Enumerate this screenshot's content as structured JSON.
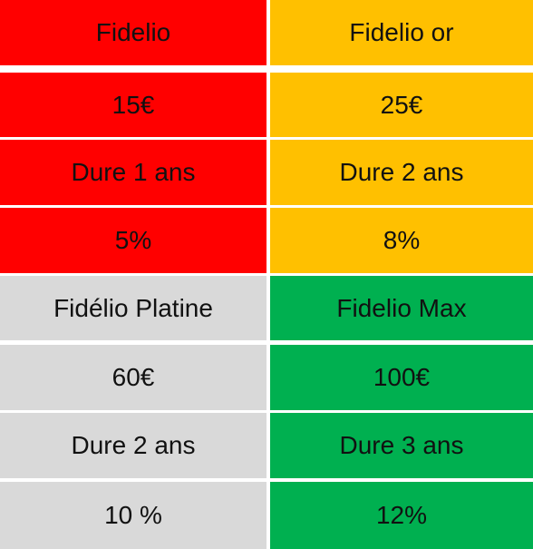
{
  "plans": [
    {
      "name": "Fidelio",
      "price": "15€",
      "duration": "Dure 1 ans",
      "discount": "5%",
      "color": "#ff0000"
    },
    {
      "name": "Fidelio or",
      "price": "25€",
      "duration": "Dure 2 ans",
      "discount": "8%",
      "color": "#ffc000"
    },
    {
      "name": "Fidélio Platine",
      "price": "60€",
      "duration": "Dure 2 ans",
      "discount": "10 %",
      "color": "#d9d9d9"
    },
    {
      "name": "Fidelio Max",
      "price": "100€",
      "duration": "Dure 3 ans",
      "discount": "12%",
      "color": "#00b050"
    }
  ]
}
